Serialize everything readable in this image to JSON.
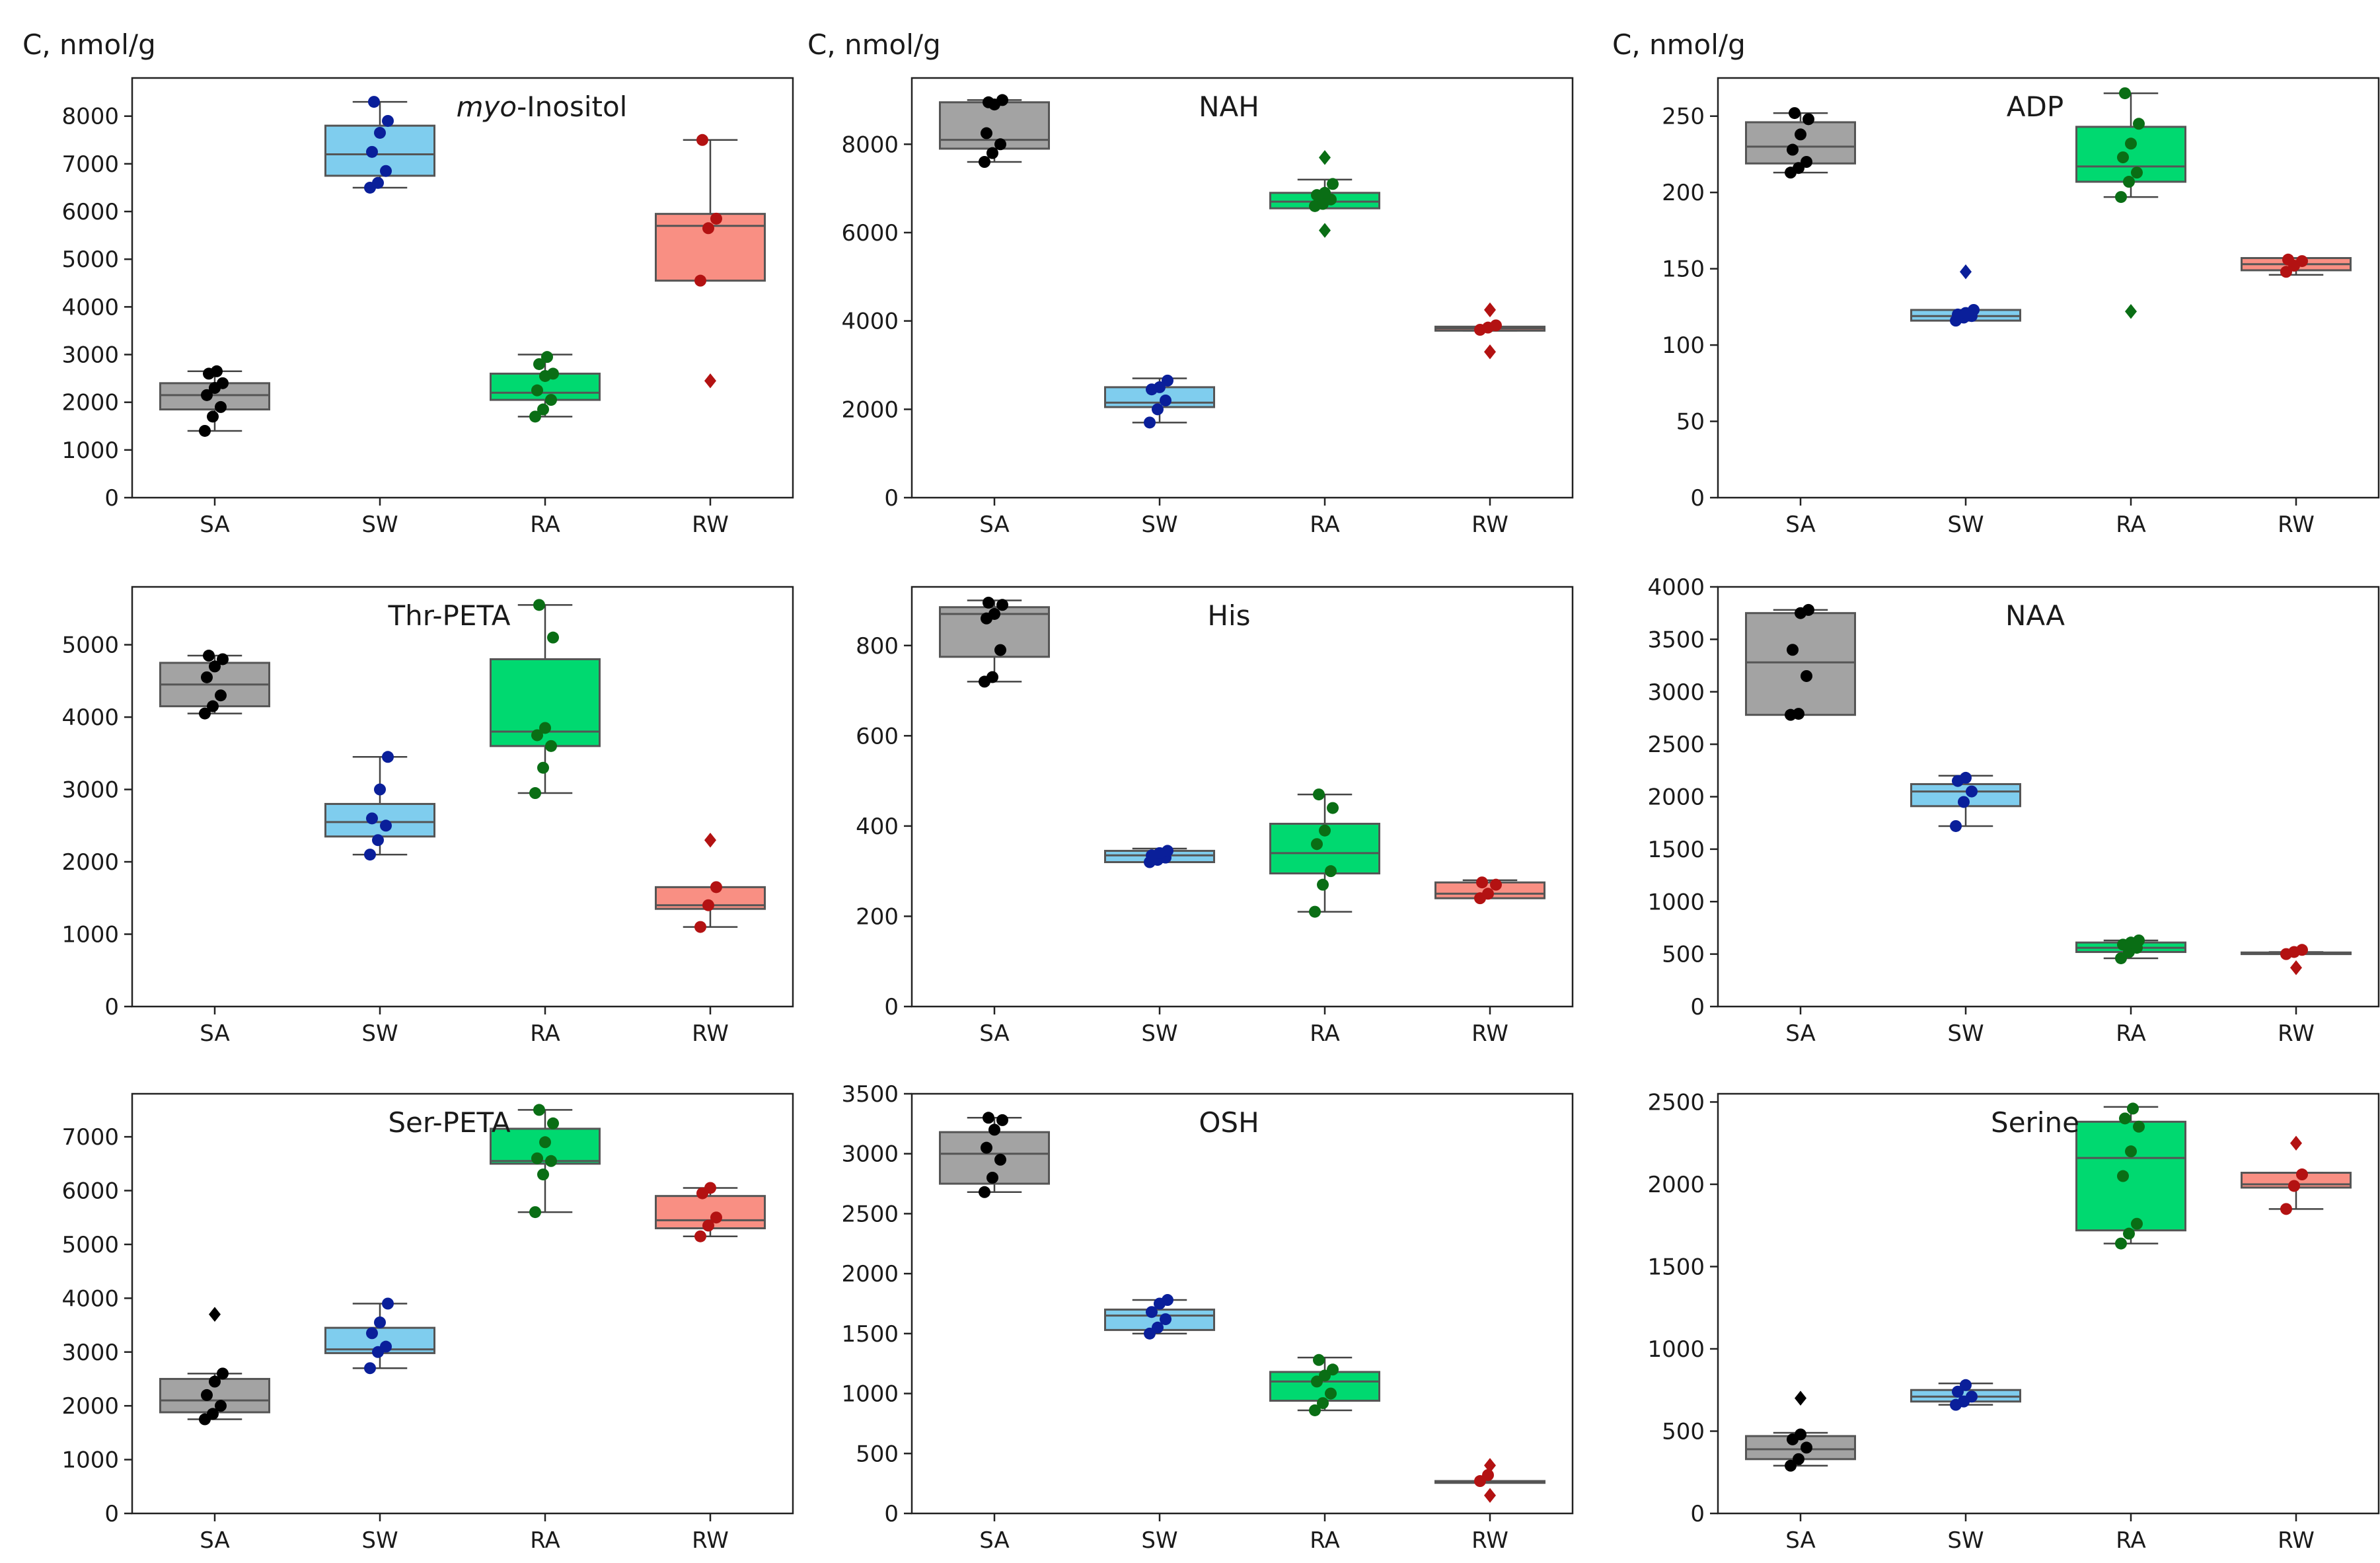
{
  "y_unit_label": "C, nmol/g",
  "colors": {
    "SA": "#a3a3a3",
    "SW": "#7fcdee",
    "RA": "#00d970",
    "RW": "#f98f83"
  },
  "point_colors": {
    "SA": "#000000",
    "SW": "#0a1f9a",
    "RA": "#0a6e15",
    "RW": "#b31212"
  },
  "chart_data": [
    {
      "type": "box",
      "title": "myo-Inositol",
      "title_italic_prefix": "myo",
      "title_suffix": "-Inositol",
      "categories": [
        "SA",
        "SW",
        "RA",
        "RW"
      ],
      "ylim": [
        0,
        8800
      ],
      "yticks": [
        0,
        1000,
        2000,
        3000,
        4000,
        5000,
        6000,
        7000,
        8000
      ],
      "boxes": [
        {
          "q1": 1850,
          "median": 2150,
          "q3": 2400,
          "whislo": 1400,
          "whishi": 2650,
          "points": [
            1400,
            1700,
            1900,
            2150,
            2300,
            2400,
            2600,
            2650
          ],
          "fliers": []
        },
        {
          "q1": 6750,
          "median": 7200,
          "q3": 7800,
          "whislo": 6500,
          "whishi": 8300,
          "points": [
            6500,
            6600,
            6850,
            7250,
            7650,
            7900,
            8300
          ],
          "fliers": []
        },
        {
          "q1": 2050,
          "median": 2200,
          "q3": 2600,
          "whislo": 1700,
          "whishi": 3000,
          "points": [
            1700,
            1850,
            2050,
            2250,
            2550,
            2600,
            2800,
            2950
          ],
          "fliers": []
        },
        {
          "q1": 4550,
          "median": 5700,
          "q3": 5950,
          "whislo": 4550,
          "whishi": 7500,
          "points": [
            4550,
            5650,
            5850,
            7500
          ],
          "fliers": [
            2450
          ]
        }
      ]
    },
    {
      "type": "box",
      "title": "NAH",
      "categories": [
        "SA",
        "SW",
        "RA",
        "RW"
      ],
      "ylim": [
        0,
        9500
      ],
      "yticks": [
        0,
        2000,
        4000,
        6000,
        8000
      ],
      "boxes": [
        {
          "q1": 7900,
          "median": 8100,
          "q3": 8950,
          "whislo": 7600,
          "whishi": 9000,
          "points": [
            7600,
            7800,
            8000,
            8250,
            8900,
            9000,
            8950
          ],
          "fliers": []
        },
        {
          "q1": 2050,
          "median": 2150,
          "q3": 2500,
          "whislo": 1700,
          "whishi": 2700,
          "points": [
            1700,
            2000,
            2200,
            2450,
            2500,
            2650
          ],
          "fliers": []
        },
        {
          "q1": 6550,
          "median": 6700,
          "q3": 6900,
          "whislo": 6550,
          "whishi": 7200,
          "points": [
            6600,
            6650,
            6750,
            6850,
            6900,
            7100
          ],
          "fliers": [
            7700,
            6050
          ]
        },
        {
          "q1": 3780,
          "median": 3830,
          "q3": 3870,
          "whislo": 3780,
          "whishi": 3870,
          "points": [
            3800,
            3850,
            3900
          ],
          "fliers": [
            4250,
            3300
          ]
        }
      ]
    },
    {
      "type": "box",
      "title": "ADP",
      "categories": [
        "SA",
        "SW",
        "RA",
        "RW"
      ],
      "ylim": [
        0,
        275
      ],
      "yticks": [
        0,
        50,
        100,
        150,
        200,
        250
      ],
      "boxes": [
        {
          "q1": 219,
          "median": 230,
          "q3": 246,
          "whislo": 213,
          "whishi": 252,
          "points": [
            213,
            216,
            220,
            228,
            238,
            248,
            252
          ],
          "fliers": []
        },
        {
          "q1": 116,
          "median": 119,
          "q3": 123,
          "whislo": 116,
          "whishi": 123,
          "points": [
            116,
            118,
            119,
            120,
            121,
            123
          ],
          "fliers": [
            148
          ]
        },
        {
          "q1": 207,
          "median": 217,
          "q3": 243,
          "whislo": 197,
          "whishi": 265,
          "points": [
            197,
            207,
            213,
            223,
            232,
            245,
            265
          ],
          "fliers": [
            122
          ]
        },
        {
          "q1": 149,
          "median": 153,
          "q3": 157,
          "whislo": 146,
          "whishi": 157,
          "points": [
            148,
            152,
            155,
            156
          ],
          "fliers": []
        }
      ]
    },
    {
      "type": "box",
      "title": "Thr-PETA",
      "categories": [
        "SA",
        "SW",
        "RA",
        "RW"
      ],
      "ylim": [
        0,
        5800
      ],
      "yticks": [
        0,
        1000,
        2000,
        3000,
        4000,
        5000
      ],
      "boxes": [
        {
          "q1": 4150,
          "median": 4450,
          "q3": 4750,
          "whislo": 4050,
          "whishi": 4850,
          "points": [
            4050,
            4150,
            4300,
            4550,
            4700,
            4800,
            4850
          ],
          "fliers": []
        },
        {
          "q1": 2350,
          "median": 2550,
          "q3": 2800,
          "whislo": 2100,
          "whishi": 3450,
          "points": [
            2100,
            2300,
            2500,
            2600,
            3000,
            3450
          ],
          "fliers": []
        },
        {
          "q1": 3600,
          "median": 3800,
          "q3": 4800,
          "whislo": 2950,
          "whishi": 5550,
          "points": [
            2950,
            3300,
            3600,
            3750,
            3850,
            5100,
            5550
          ],
          "fliers": []
        },
        {
          "q1": 1350,
          "median": 1400,
          "q3": 1650,
          "whislo": 1100,
          "whishi": 1650,
          "points": [
            1100,
            1400,
            1650
          ],
          "fliers": [
            2300
          ]
        }
      ]
    },
    {
      "type": "box",
      "title": "His",
      "categories": [
        "SA",
        "SW",
        "RA",
        "RW"
      ],
      "ylim": [
        0,
        930
      ],
      "yticks": [
        0,
        200,
        400,
        600,
        800
      ],
      "boxes": [
        {
          "q1": 775,
          "median": 870,
          "q3": 885,
          "whislo": 720,
          "whishi": 900,
          "points": [
            720,
            730,
            790,
            860,
            870,
            890,
            895
          ],
          "fliers": []
        },
        {
          "q1": 320,
          "median": 335,
          "q3": 345,
          "whislo": 320,
          "whishi": 350,
          "points": [
            320,
            325,
            330,
            335,
            340,
            345
          ],
          "fliers": []
        },
        {
          "q1": 295,
          "median": 340,
          "q3": 405,
          "whislo": 210,
          "whishi": 470,
          "points": [
            210,
            270,
            300,
            360,
            390,
            440,
            470
          ],
          "fliers": []
        },
        {
          "q1": 240,
          "median": 250,
          "q3": 275,
          "whislo": 240,
          "whishi": 280,
          "points": [
            240,
            250,
            270,
            275
          ],
          "fliers": []
        }
      ]
    },
    {
      "type": "box",
      "title": "NAA",
      "categories": [
        "SA",
        "SW",
        "RA",
        "RW"
      ],
      "ylim": [
        0,
        4000
      ],
      "yticks": [
        0,
        500,
        1000,
        1500,
        2000,
        2500,
        3000,
        3500,
        4000
      ],
      "boxes": [
        {
          "q1": 2780,
          "median": 3280,
          "q3": 3750,
          "whislo": 2780,
          "whishi": 3780,
          "points": [
            2780,
            2790,
            3150,
            3400,
            3750,
            3780
          ],
          "fliers": []
        },
        {
          "q1": 1910,
          "median": 2050,
          "q3": 2120,
          "whislo": 1720,
          "whishi": 2200,
          "points": [
            1720,
            1950,
            2050,
            2150,
            2180
          ],
          "fliers": []
        },
        {
          "q1": 520,
          "median": 560,
          "q3": 610,
          "whislo": 460,
          "whishi": 630,
          "points": [
            460,
            520,
            560,
            590,
            610,
            630
          ],
          "fliers": []
        },
        {
          "q1": 500,
          "median": 505,
          "q3": 515,
          "whislo": 500,
          "whishi": 520,
          "points": [
            500,
            520,
            540
          ],
          "fliers": [
            370
          ]
        }
      ]
    },
    {
      "type": "box",
      "title": "Ser-PETA",
      "categories": [
        "SA",
        "SW",
        "RA",
        "RW"
      ],
      "ylim": [
        0,
        7800
      ],
      "yticks": [
        0,
        1000,
        2000,
        3000,
        4000,
        5000,
        6000,
        7000
      ],
      "boxes": [
        {
          "q1": 1880,
          "median": 2100,
          "q3": 2500,
          "whislo": 1750,
          "whishi": 2600,
          "points": [
            1750,
            1850,
            2000,
            2200,
            2450,
            2600
          ],
          "fliers": [
            3700
          ]
        },
        {
          "q1": 2980,
          "median": 3050,
          "q3": 3450,
          "whislo": 2700,
          "whishi": 3900,
          "points": [
            2700,
            3000,
            3100,
            3350,
            3550,
            3900
          ],
          "fliers": []
        },
        {
          "q1": 6500,
          "median": 6550,
          "q3": 7150,
          "whislo": 5600,
          "whishi": 7500,
          "points": [
            5600,
            6300,
            6550,
            6600,
            6900,
            7250,
            7500
          ],
          "fliers": []
        },
        {
          "q1": 5300,
          "median": 5450,
          "q3": 5900,
          "whislo": 5150,
          "whishi": 6050,
          "points": [
            5150,
            5350,
            5500,
            5950,
            6050
          ],
          "fliers": []
        }
      ]
    },
    {
      "type": "box",
      "title": "OSH",
      "categories": [
        "SA",
        "SW",
        "RA",
        "RW"
      ],
      "ylim": [
        0,
        3500
      ],
      "yticks": [
        0,
        500,
        1000,
        1500,
        2000,
        2500,
        3000,
        3500
      ],
      "boxes": [
        {
          "q1": 2750,
          "median": 3000,
          "q3": 3180,
          "whislo": 2680,
          "whishi": 3300,
          "points": [
            2680,
            2800,
            2950,
            3050,
            3200,
            3280,
            3300
          ],
          "fliers": []
        },
        {
          "q1": 1530,
          "median": 1650,
          "q3": 1700,
          "whislo": 1500,
          "whishi": 1780,
          "points": [
            1500,
            1550,
            1620,
            1680,
            1750,
            1780
          ],
          "fliers": []
        },
        {
          "q1": 940,
          "median": 1100,
          "q3": 1180,
          "whislo": 860,
          "whishi": 1300,
          "points": [
            860,
            920,
            1000,
            1100,
            1150,
            1200,
            1280
          ],
          "fliers": []
        },
        {
          "q1": 255,
          "median": 260,
          "q3": 270,
          "whislo": 255,
          "whishi": 270,
          "points": [
            270,
            320
          ],
          "fliers": [
            400,
            150
          ]
        }
      ]
    },
    {
      "type": "box",
      "title": "Serine",
      "categories": [
        "SA",
        "SW",
        "RA",
        "RW"
      ],
      "ylim": [
        0,
        2550
      ],
      "yticks": [
        0,
        500,
        1000,
        1500,
        2000,
        2500
      ],
      "boxes": [
        {
          "q1": 330,
          "median": 390,
          "q3": 470,
          "whislo": 290,
          "whishi": 490,
          "points": [
            290,
            330,
            400,
            450,
            480
          ],
          "fliers": [
            700
          ]
        },
        {
          "q1": 680,
          "median": 710,
          "q3": 750,
          "whislo": 660,
          "whishi": 790,
          "points": [
            660,
            680,
            710,
            740,
            780
          ],
          "fliers": []
        },
        {
          "q1": 1720,
          "median": 2160,
          "q3": 2380,
          "whislo": 1640,
          "whishi": 2470,
          "points": [
            1640,
            1700,
            1760,
            2050,
            2200,
            2350,
            2400,
            2460
          ],
          "fliers": []
        },
        {
          "q1": 1980,
          "median": 2000,
          "q3": 2070,
          "whislo": 1850,
          "whishi": 2070,
          "points": [
            1850,
            1990,
            2060
          ],
          "fliers": [
            2250
          ]
        }
      ]
    }
  ]
}
